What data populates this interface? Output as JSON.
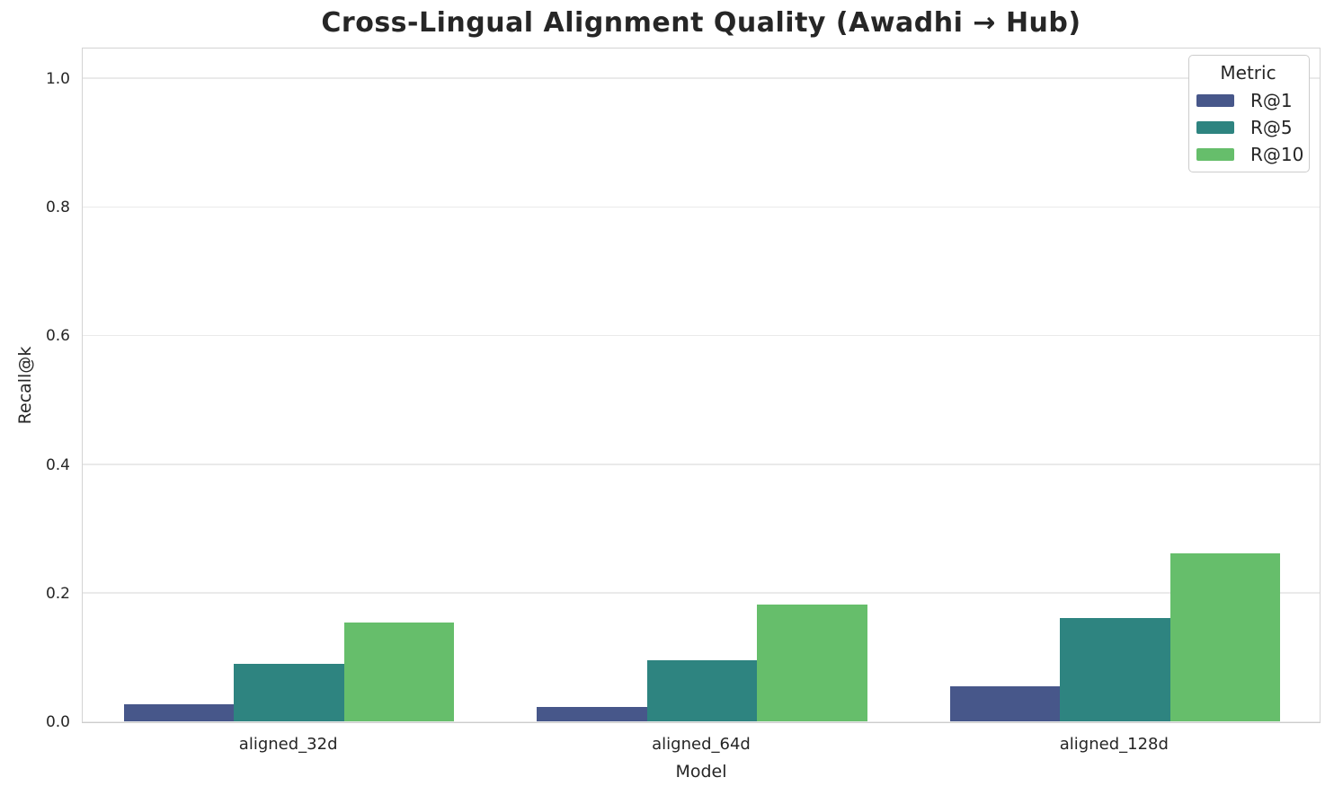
{
  "chart_data": {
    "type": "bar",
    "title": "Cross-Lingual Alignment Quality (Awadhi → Hub)",
    "xlabel": "Model",
    "ylabel": "Recall@k",
    "categories": [
      "aligned_32d",
      "aligned_64d",
      "aligned_128d"
    ],
    "series": [
      {
        "name": "R@1",
        "color": "#47578A",
        "values": [
          0.027,
          0.022,
          0.055
        ]
      },
      {
        "name": "R@5",
        "color": "#2E8480",
        "values": [
          0.09,
          0.095,
          0.161
        ]
      },
      {
        "name": "R@10",
        "color": "#66BE6B",
        "values": [
          0.153,
          0.182,
          0.261
        ]
      }
    ],
    "ylim": [
      0,
      1.05
    ],
    "yticks": [
      0.0,
      0.2,
      0.4,
      0.6,
      0.8,
      1.0
    ],
    "grid": "horizontal",
    "group_width_fraction": 0.8,
    "legend": {
      "title": "Metric",
      "position": "upper right"
    },
    "text_color": "#262626",
    "gridline_color": "#eaeaea",
    "spine_color": "#d4d4d4"
  }
}
